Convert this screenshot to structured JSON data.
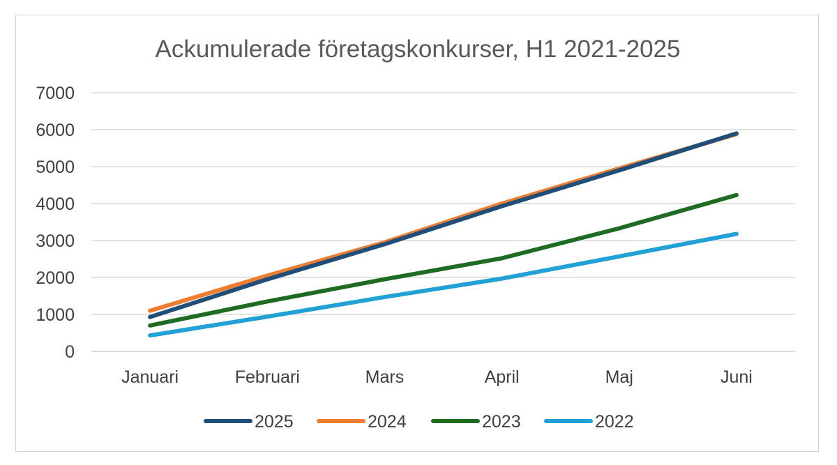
{
  "chart_data": {
    "type": "line",
    "title": "Ackumulerade företagskonkurser, H1 2021-2025",
    "xlabel": "",
    "ylabel": "",
    "categories": [
      "Januari",
      "Februari",
      "Mars",
      "April",
      "Maj",
      "Juni"
    ],
    "ylim": [
      0,
      7000
    ],
    "yticks": [
      0,
      1000,
      2000,
      3000,
      4000,
      5000,
      6000,
      7000
    ],
    "grid": true,
    "legend_position": "bottom",
    "series": [
      {
        "name": "2025",
        "color": "#1f4e79",
        "values": [
          930,
          1950,
          2900,
          3930,
          4900,
          5900
        ]
      },
      {
        "name": "2024",
        "color": "#ed7d31",
        "values": [
          1100,
          2050,
          2950,
          4000,
          4950,
          5880
        ]
      },
      {
        "name": "2023",
        "color": "#1e6b22",
        "values": [
          700,
          1350,
          1950,
          2520,
          3330,
          4230
        ]
      },
      {
        "name": "2022",
        "color": "#21a1d6",
        "values": [
          430,
          940,
          1470,
          1970,
          2570,
          3180
        ]
      }
    ]
  }
}
